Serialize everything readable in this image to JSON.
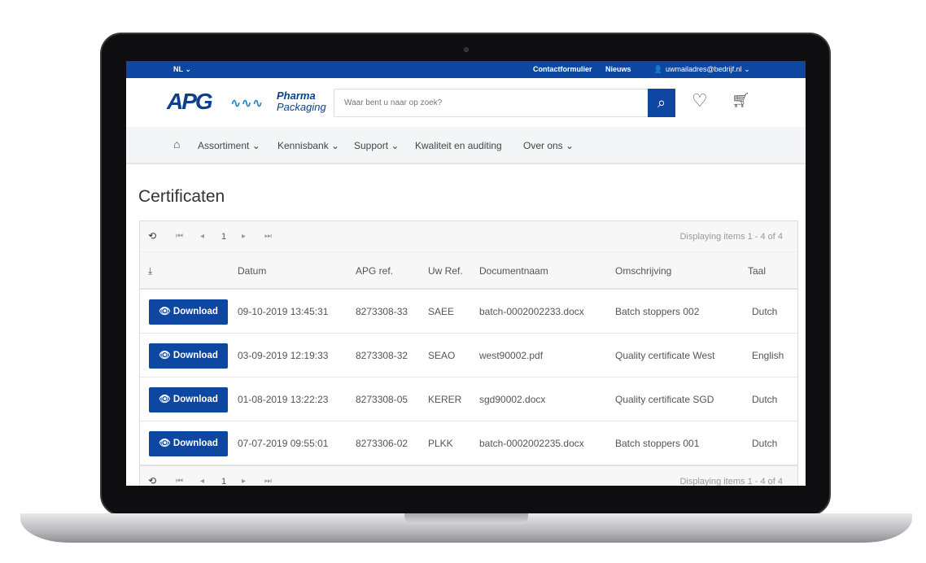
{
  "topbar": {
    "language": "NL",
    "links": [
      "Contactformulier",
      "Nieuws"
    ],
    "user": "uwmailadres@bedrijf.nl"
  },
  "header": {
    "logo_text": "APG",
    "logo_sub1": "Pharma",
    "logo_sub2": "Packaging",
    "search_placeholder": "Waar bent u naar op zoek?"
  },
  "nav": {
    "items": [
      "Assortiment",
      "Kennisbank",
      "Support",
      "Kwaliteit en auditing",
      "Over ons"
    ]
  },
  "page_title": "Certificaten",
  "pager": {
    "page": "1",
    "info": "Displaying items 1 - 4 of 4"
  },
  "table": {
    "columns": [
      "Datum",
      "APG ref.",
      "Uw Ref.",
      "Documentnaam",
      "Omschrijving",
      "Taal"
    ],
    "download_label": "Download",
    "rows": [
      [
        "09-10-2019 13:45:31",
        "8273308-33",
        "SAEE",
        "batch-0002002233.docx",
        "Batch stoppers 002",
        "Dutch"
      ],
      [
        "03-09-2019 12:19:33",
        "8273308-32",
        "SEAO",
        "west90002.pdf",
        "Quality certificate West",
        "English"
      ],
      [
        "01-08-2019 13:22:23",
        "8273308-05",
        "KERER",
        "sgd90002.docx",
        "Quality certificate SGD",
        "Dutch"
      ],
      [
        "07-07-2019 09:55:01",
        "8273306-02",
        "PLKK",
        "batch-0002002235.docx",
        "Batch stoppers 001",
        "Dutch"
      ]
    ]
  },
  "colors": {
    "brand": "#0d47a1"
  }
}
